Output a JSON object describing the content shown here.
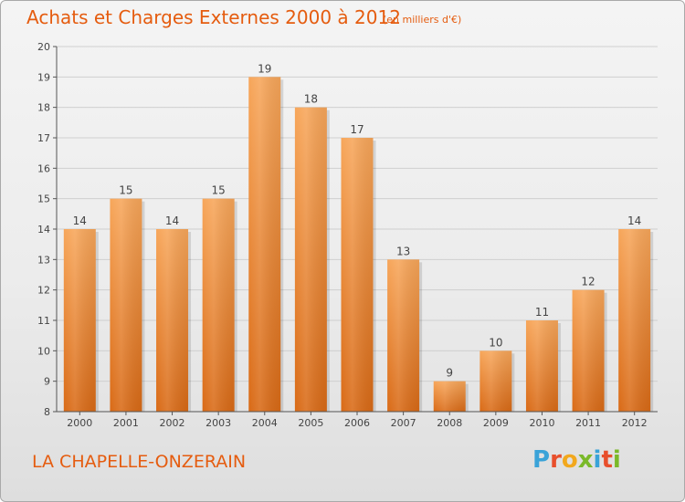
{
  "header": {
    "title": "Achats et Charges Externes 2000 à 2012",
    "subtitle": "(en milliers d'€)"
  },
  "footer": {
    "location": "LA CHAPELLE-ONZERAIN",
    "brand": "Proxiti",
    "brand_letters": [
      {
        "char": "P",
        "color": "#3aa3d8"
      },
      {
        "char": "r",
        "color": "#e84f2c"
      },
      {
        "char": "o",
        "color": "#f2a81d"
      },
      {
        "char": "x",
        "color": "#7ab929"
      },
      {
        "char": "i",
        "color": "#3aa3d8"
      },
      {
        "char": "t",
        "color": "#e84f2c"
      },
      {
        "char": "i",
        "color": "#7ab929"
      }
    ]
  },
  "colors": {
    "accent": "#e55c0f",
    "bar_top": "#f7a65a",
    "bar_bottom": "#d96a16",
    "grid": "#cfcfcf",
    "axis": "#555555"
  },
  "chart_data": {
    "type": "bar",
    "title": "Achats et Charges Externes 2000 à 2012",
    "subtitle": "(en milliers d'€)",
    "categories": [
      "2000",
      "2001",
      "2002",
      "2003",
      "2004",
      "2005",
      "2006",
      "2007",
      "2008",
      "2009",
      "2010",
      "2011",
      "2012"
    ],
    "values": [
      14,
      15,
      14,
      15,
      19,
      18,
      17,
      13,
      9,
      10,
      11,
      12,
      14
    ],
    "data_labels": [
      "14",
      "15",
      "14",
      "15",
      "19",
      "18",
      "17",
      "13",
      "9",
      "10",
      "11",
      "12",
      "14"
    ],
    "ylim": [
      8,
      20
    ],
    "yticks": [
      8,
      9,
      10,
      11,
      12,
      13,
      14,
      15,
      16,
      17,
      18,
      19,
      20
    ],
    "grid": true,
    "legend": "none"
  }
}
